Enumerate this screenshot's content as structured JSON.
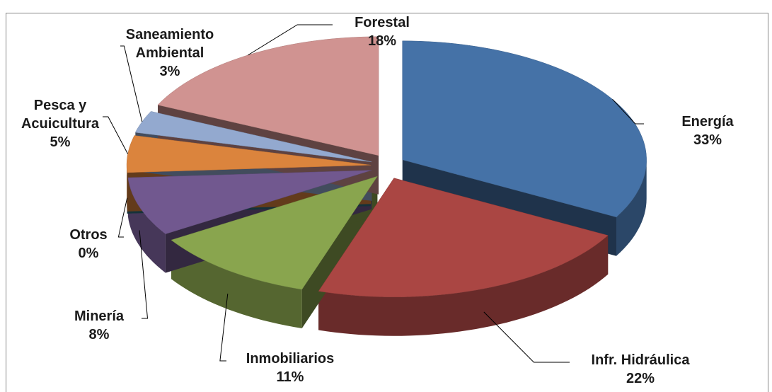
{
  "chart_data": {
    "type": "pie3d",
    "categories": [
      "Energía",
      "Infr. Hidráulica",
      "Inmobiliarios",
      "Minería",
      "Otros",
      "Pesca y Acuicultura",
      "Saneamiento Ambiental",
      "Forestal"
    ],
    "values": [
      33,
      22,
      11,
      8,
      0,
      5,
      3,
      18
    ],
    "value_labels": [
      "33%",
      "22%",
      "11%",
      "8%",
      "0%",
      "5%",
      "3%",
      "18%"
    ],
    "colors": [
      "#4572a7",
      "#aa4643",
      "#89a54e",
      "#71588f",
      "#2f6f80",
      "#db843d",
      "#93a9cf",
      "#d09391"
    ]
  }
}
